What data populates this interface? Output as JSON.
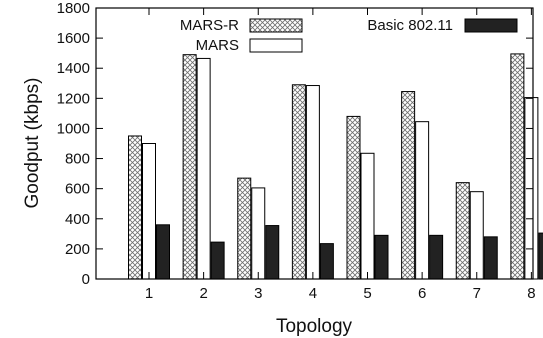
{
  "chart_data": {
    "type": "bar",
    "xlabel": "Topology",
    "ylabel": "Goodput (kbps)",
    "ylim": [
      0,
      1800
    ],
    "y_ticks": [
      0,
      200,
      400,
      600,
      800,
      1000,
      1200,
      1400,
      1600,
      1800
    ],
    "categories": [
      "1",
      "2",
      "3",
      "4",
      "5",
      "6",
      "7",
      "8"
    ],
    "grid": false,
    "legend_position": "top",
    "series": [
      {
        "name": "MARS-R",
        "pattern": "crosshatch",
        "color": "#ffffff",
        "values": [
          950,
          1490,
          670,
          1290,
          1080,
          1245,
          640,
          1495
        ]
      },
      {
        "name": "MARS",
        "pattern": "none",
        "color": "#ffffff",
        "values": [
          900,
          1465,
          605,
          1285,
          835,
          1045,
          580,
          1205
        ]
      },
      {
        "name": "Basic 802.11",
        "pattern": "solid",
        "color": "#222222",
        "values": [
          360,
          245,
          355,
          235,
          290,
          290,
          280,
          305
        ]
      }
    ]
  }
}
